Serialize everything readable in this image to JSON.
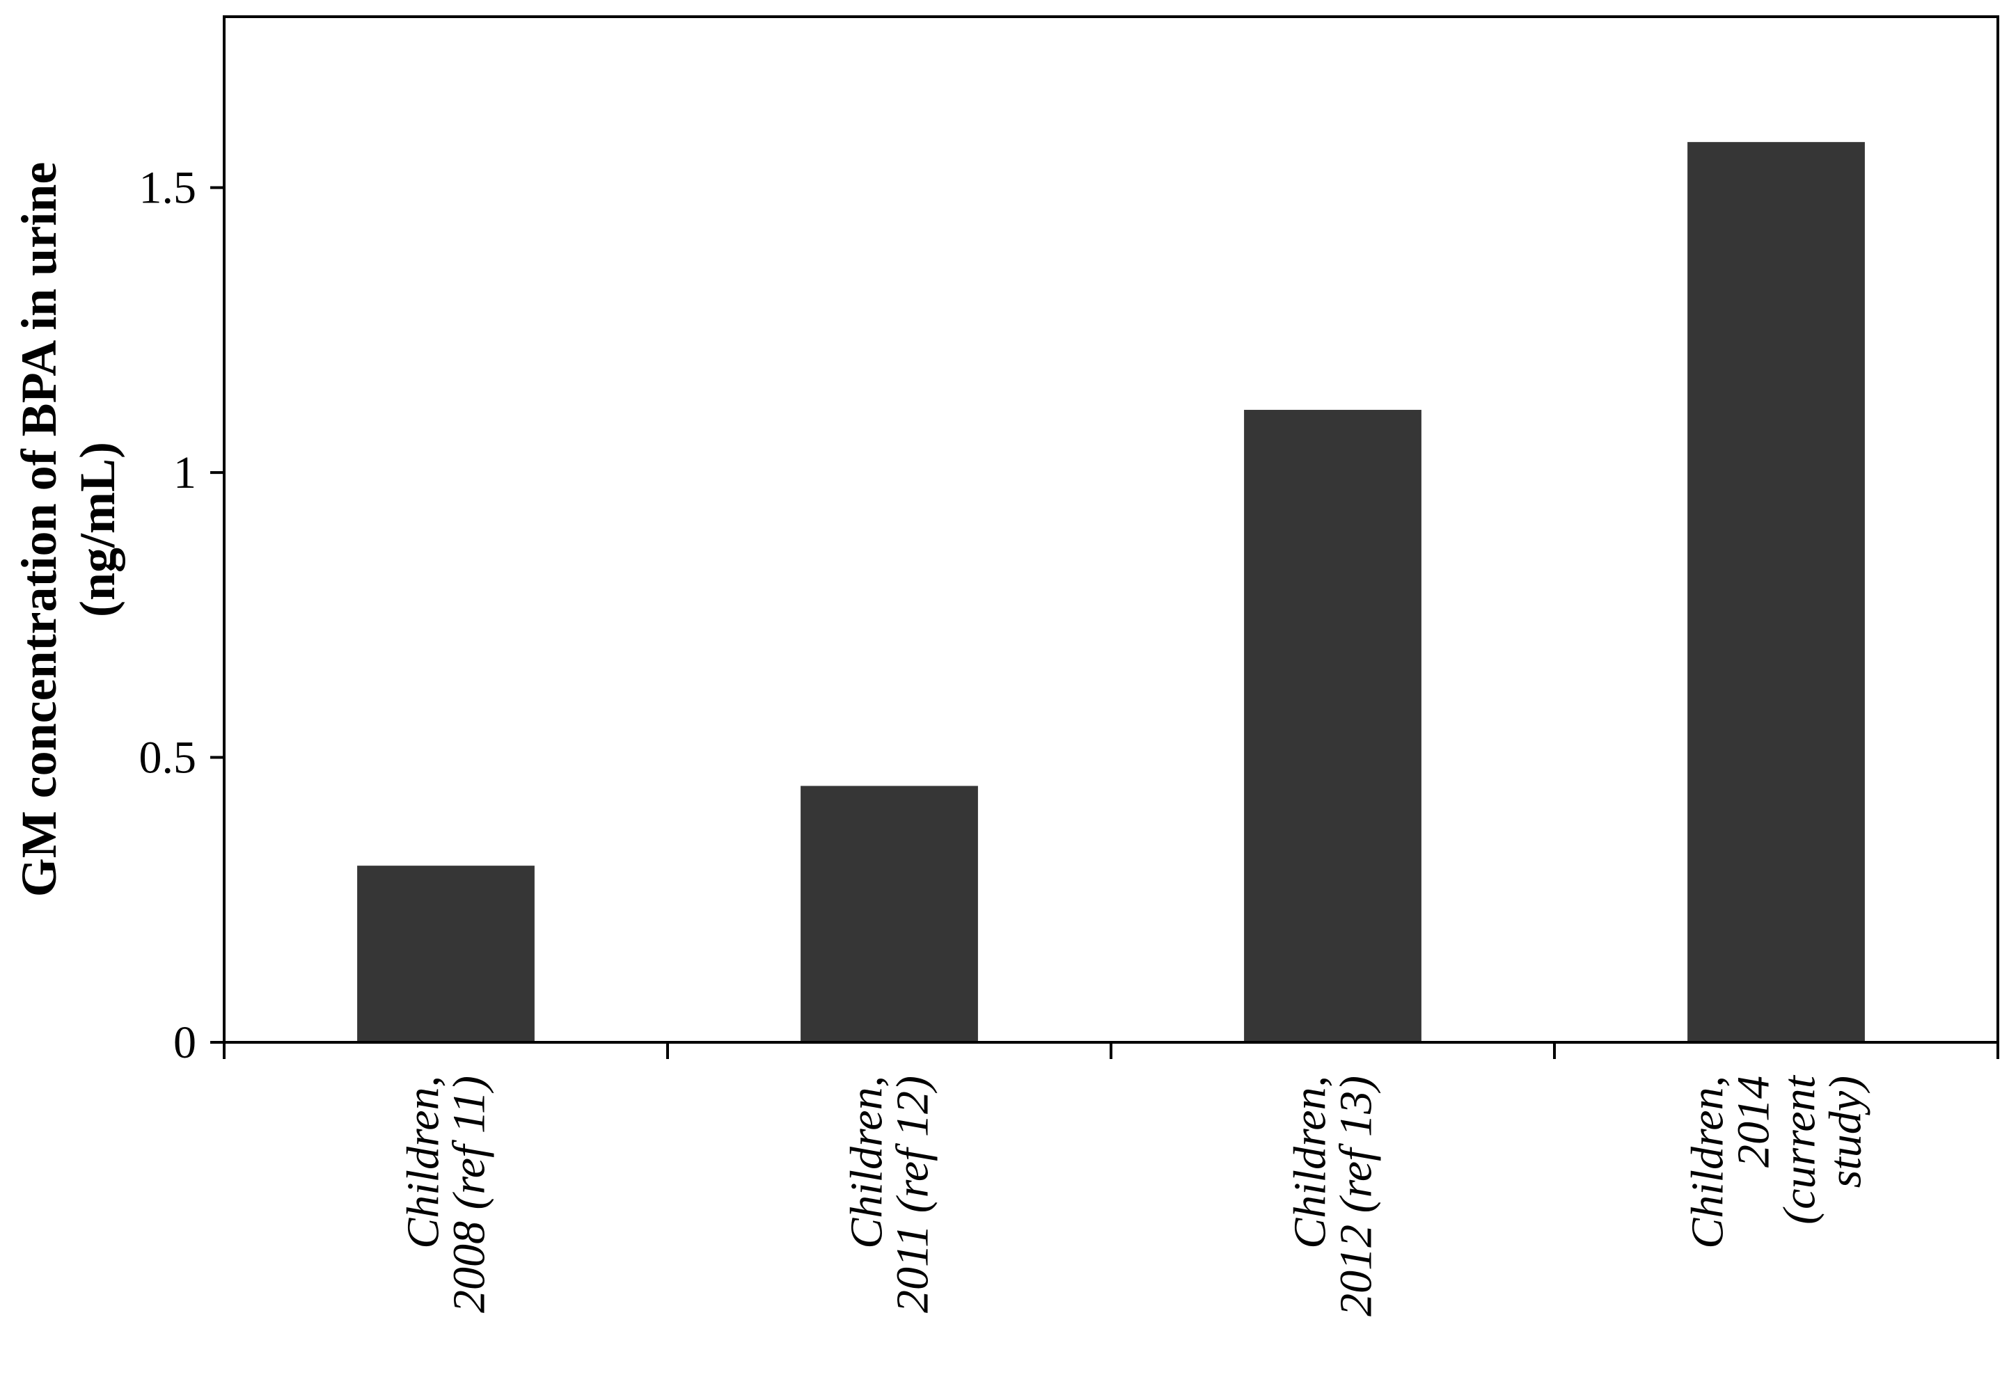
{
  "chart_data": {
    "type": "bar",
    "categories": [
      [
        "Children,",
        "2008 (ref 11)"
      ],
      [
        "Children,",
        "2011 (ref 12)"
      ],
      [
        "Children,",
        "2012 (ref 13)"
      ],
      [
        "Children,",
        "2014",
        "(current",
        "study)"
      ]
    ],
    "values": [
      0.31,
      0.45,
      1.11,
      1.58
    ],
    "ylabel": [
      "GM concentration of BPA in urine",
      "(ng/mL)"
    ],
    "xlabel": "",
    "title": "",
    "ylim": [
      0,
      1.8
    ],
    "yticks": [
      0,
      0.5,
      1,
      1.5
    ],
    "ytick_labels": [
      "0",
      "0.5",
      "1",
      "1.5"
    ],
    "grid": false,
    "legend": "none",
    "colors": {
      "bar": "#363636",
      "axis": "#000000",
      "background": "#ffffff"
    }
  }
}
